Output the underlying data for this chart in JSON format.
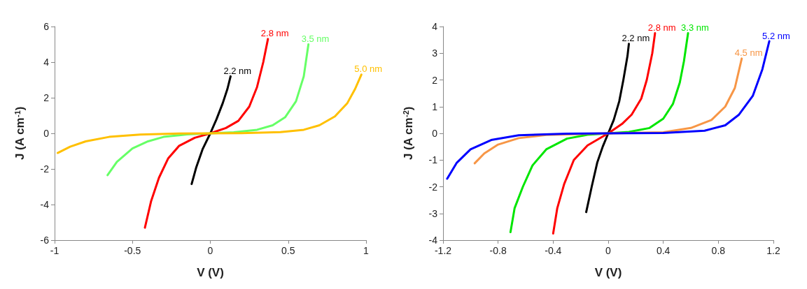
{
  "chart_data": [
    {
      "type": "line",
      "xlabel": "V (V)",
      "ylabel": "J (A cm$^{-1}$)",
      "xlim": [
        -1,
        1
      ],
      "xticks": [
        -1,
        -0.5,
        0,
        0.5,
        1
      ],
      "ylim": [
        -6,
        6
      ],
      "yticks": [
        -6,
        -4,
        -2,
        0,
        2,
        4,
        6
      ],
      "grid": false,
      "legend": false,
      "marker": "none",
      "line_style": "solid",
      "series": [
        {
          "name": "2.2 nm",
          "color": "#000000",
          "x": [
            -0.12,
            -0.09,
            -0.05,
            0,
            0.04,
            0.08,
            0.11,
            0.13
          ],
          "values": [
            -2.85,
            -1.9,
            -0.9,
            0,
            0.8,
            1.7,
            2.5,
            3.2
          ]
        },
        {
          "name": "2.8 nm",
          "color": "#ff0000",
          "x": [
            -0.42,
            -0.38,
            -0.33,
            -0.27,
            -0.2,
            -0.1,
            0,
            0.1,
            0.18,
            0.25,
            0.3,
            0.34,
            0.37
          ],
          "values": [
            -5.3,
            -3.8,
            -2.5,
            -1.4,
            -0.7,
            -0.25,
            0,
            0.3,
            0.7,
            1.5,
            2.6,
            4,
            5.3
          ]
        },
        {
          "name": "3.5 nm",
          "color": "#66ff66",
          "x": [
            -0.66,
            -0.6,
            -0.5,
            -0.4,
            -0.3,
            -0.15,
            0,
            0.15,
            0.3,
            0.4,
            0.48,
            0.55,
            0.6,
            0.63
          ],
          "values": [
            -2.35,
            -1.6,
            -0.85,
            -0.45,
            -0.2,
            -0.06,
            0,
            0.06,
            0.2,
            0.45,
            0.9,
            1.8,
            3.2,
            5.0
          ]
        },
        {
          "name": "5.0 nm",
          "color": "#ffc000",
          "x": [
            -0.98,
            -0.9,
            -0.8,
            -0.65,
            -0.45,
            -0.2,
            0,
            0.2,
            0.45,
            0.6,
            0.7,
            0.8,
            0.88,
            0.93,
            0.97
          ],
          "values": [
            -1.1,
            -0.75,
            -0.45,
            -0.2,
            -0.07,
            -0.01,
            0,
            0.01,
            0.07,
            0.2,
            0.45,
            0.95,
            1.7,
            2.5,
            3.3
          ]
        }
      ]
    },
    {
      "type": "line",
      "xlabel": "V (V)",
      "ylabel": "J (A cm$^{-2}$)",
      "xlim": [
        -1.2,
        1.2
      ],
      "xticks": [
        -1.2,
        -0.8,
        -0.4,
        0,
        0.4,
        0.8,
        1.2
      ],
      "ylim": [
        -4,
        4
      ],
      "yticks": [
        -4,
        -3,
        -2,
        -1,
        0,
        1,
        2,
        3,
        4
      ],
      "grid": false,
      "legend": false,
      "marker": "none",
      "line_style": "solid",
      "series": [
        {
          "name": "2.2 nm",
          "color": "#000000",
          "x": [
            -0.16,
            -0.12,
            -0.08,
            -0.04,
            0,
            0.04,
            0.08,
            0.11,
            0.14,
            0.15
          ],
          "values": [
            -2.95,
            -2.0,
            -1.1,
            -0.5,
            0,
            0.5,
            1.2,
            2.0,
            2.9,
            3.35
          ]
        },
        {
          "name": "2.8 nm",
          "color": "#ff0000",
          "x": [
            -0.4,
            -0.37,
            -0.32,
            -0.25,
            -0.15,
            0,
            0.1,
            0.17,
            0.24,
            0.28,
            0.32,
            0.34
          ],
          "values": [
            -3.75,
            -2.8,
            -1.9,
            -1.0,
            -0.45,
            0,
            0.35,
            0.7,
            1.3,
            2.0,
            3.0,
            3.75
          ]
        },
        {
          "name": "3.3 nm",
          "color": "#00e600",
          "x": [
            -0.71,
            -0.68,
            -0.62,
            -0.55,
            -0.45,
            -0.3,
            -0.15,
            0,
            0.15,
            0.3,
            0.4,
            0.47,
            0.52,
            0.55,
            0.58
          ],
          "values": [
            -3.7,
            -2.8,
            -2.0,
            -1.2,
            -0.6,
            -0.2,
            -0.05,
            0,
            0.05,
            0.2,
            0.55,
            1.1,
            1.9,
            2.7,
            3.75
          ]
        },
        {
          "name": "4.5 nm",
          "color": "#f79646",
          "x": [
            -0.97,
            -0.9,
            -0.8,
            -0.65,
            -0.45,
            0,
            0.4,
            0.6,
            0.75,
            0.85,
            0.92,
            0.97
          ],
          "values": [
            -1.12,
            -0.75,
            -0.42,
            -0.18,
            -0.06,
            0,
            0.04,
            0.2,
            0.5,
            1.0,
            1.7,
            2.8
          ]
        },
        {
          "name": "5.2 nm",
          "color": "#0000ff",
          "x": [
            -1.17,
            -1.1,
            -1.0,
            -0.85,
            -0.65,
            -0.3,
            0,
            0.4,
            0.7,
            0.85,
            0.95,
            1.05,
            1.12,
            1.17
          ],
          "values": [
            -1.7,
            -1.1,
            -0.6,
            -0.25,
            -0.07,
            -0.01,
            0,
            0.01,
            0.1,
            0.3,
            0.7,
            1.4,
            2.4,
            3.45
          ]
        }
      ]
    }
  ]
}
